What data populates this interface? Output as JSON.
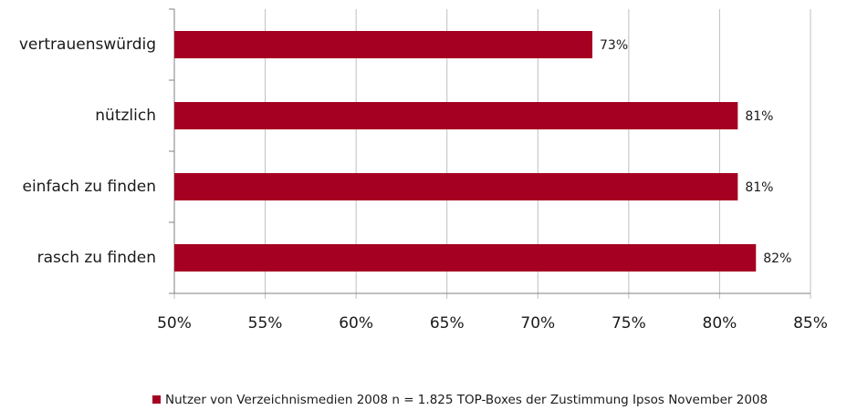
{
  "chart_data": {
    "type": "hbar",
    "categories": [
      "vertrauenswürdig",
      "nützlich",
      "einfach zu finden",
      "rasch zu finden"
    ],
    "series": [
      {
        "name": "Nutzer von Verzeichnismedien 2008 n = 1.825 TOP-Boxes der Zustimmung Ipsos November 2008",
        "color": "#a50021",
        "values": [
          73,
          81,
          81,
          82
        ],
        "value_labels": [
          "73%",
          "81%",
          "81%",
          "82%"
        ]
      }
    ],
    "xlim": [
      50,
      85
    ],
    "xticks": [
      {
        "value": 50,
        "label": "50%"
      },
      {
        "value": 55,
        "label": "55%"
      },
      {
        "value": 60,
        "label": "60%"
      },
      {
        "value": 65,
        "label": "65%"
      },
      {
        "value": 70,
        "label": "70%"
      },
      {
        "value": 75,
        "label": "75%"
      },
      {
        "value": 80,
        "label": "80%"
      },
      {
        "value": 85,
        "label": "85%"
      }
    ],
    "grid": true,
    "legend": "bottom"
  }
}
